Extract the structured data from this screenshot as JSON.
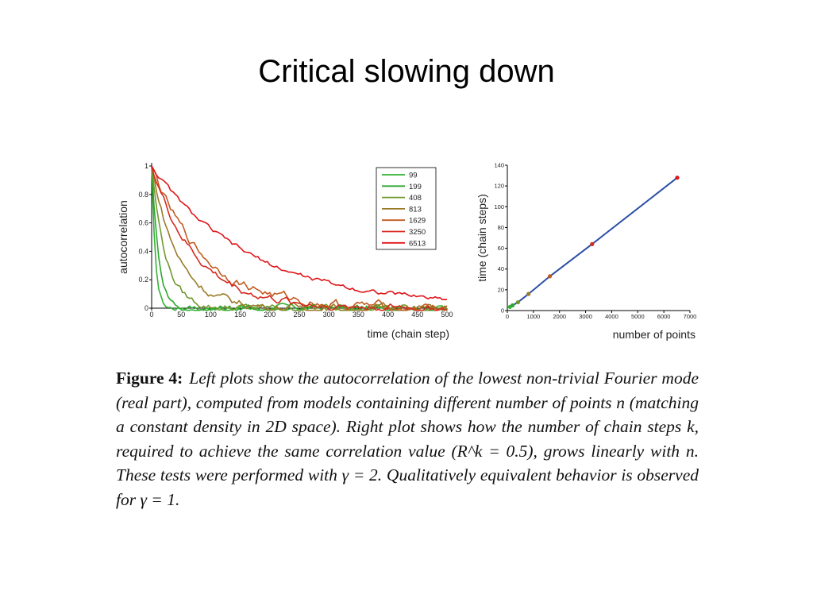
{
  "slide": {
    "title": "Critical slowing down"
  },
  "caption": {
    "label": "Figure 4:",
    "text": "Left plots show the autocorrelation of the lowest non-trivial Fourier mode (real part), computed from models containing different number of points n (matching a constant density in 2D space). Right plot shows how the number of chain steps k, required to achieve the same correlation value (R^k = 0.5), grows linearly with n. These tests were performed with γ = 2. Qualitatively equivalent behavior is observed for γ = 1."
  },
  "chart_data": [
    {
      "type": "line",
      "xlabel": "time (chain step)",
      "ylabel": "autocorrelation",
      "xlim": [
        0,
        500
      ],
      "ylim": [
        0,
        1
      ],
      "xticks": [
        0,
        50,
        100,
        150,
        200,
        250,
        300,
        350,
        400,
        450,
        500
      ],
      "yticks": [
        0,
        0.2,
        0.4,
        0.6,
        0.8,
        1
      ],
      "ytick_labels": [
        "0",
        "0.2",
        "0.4",
        "0.6",
        "0.8",
        "1"
      ],
      "grid": false,
      "legend_position": "top-right",
      "series": [
        {
          "name": "99",
          "color": "#33b233",
          "tau": 6,
          "noise": 0.018
        },
        {
          "name": "199",
          "color": "#2ea62e",
          "tau": 12,
          "noise": 0.018
        },
        {
          "name": "408",
          "color": "#6f9a2a",
          "tau": 24,
          "noise": 0.018
        },
        {
          "name": "813",
          "color": "#9a7a28",
          "tau": 45,
          "noise": 0.02
        },
        {
          "name": "1629",
          "color": "#c25a20",
          "tau": 88,
          "noise": 0.022
        },
        {
          "name": "3250",
          "color": "#d62a1f",
          "tau": 75,
          "noise": 0.02
        },
        {
          "name": "6513",
          "color": "#e0151a",
          "tau": 165,
          "noise": 0.012
        }
      ]
    },
    {
      "type": "line",
      "xlabel": "number of points",
      "ylabel": "time (chain steps)",
      "xlim": [
        0,
        7000
      ],
      "ylim": [
        0,
        140
      ],
      "xticks": [
        0,
        1000,
        2000,
        3000,
        4000,
        5000,
        6000,
        7000
      ],
      "yticks": [
        0,
        20,
        40,
        60,
        80,
        100,
        120,
        140
      ],
      "grid": false,
      "line_color": "#2c4ea6",
      "x": [
        99,
        199,
        408,
        813,
        1629,
        3250,
        6513
      ],
      "y": [
        3.5,
        5,
        8,
        16,
        33,
        64,
        128
      ],
      "point_colors": [
        "#33b233",
        "#2ea62e",
        "#6f9a2a",
        "#9a7a28",
        "#c25a20",
        "#d62a1f",
        "#e0151a"
      ]
    }
  ]
}
